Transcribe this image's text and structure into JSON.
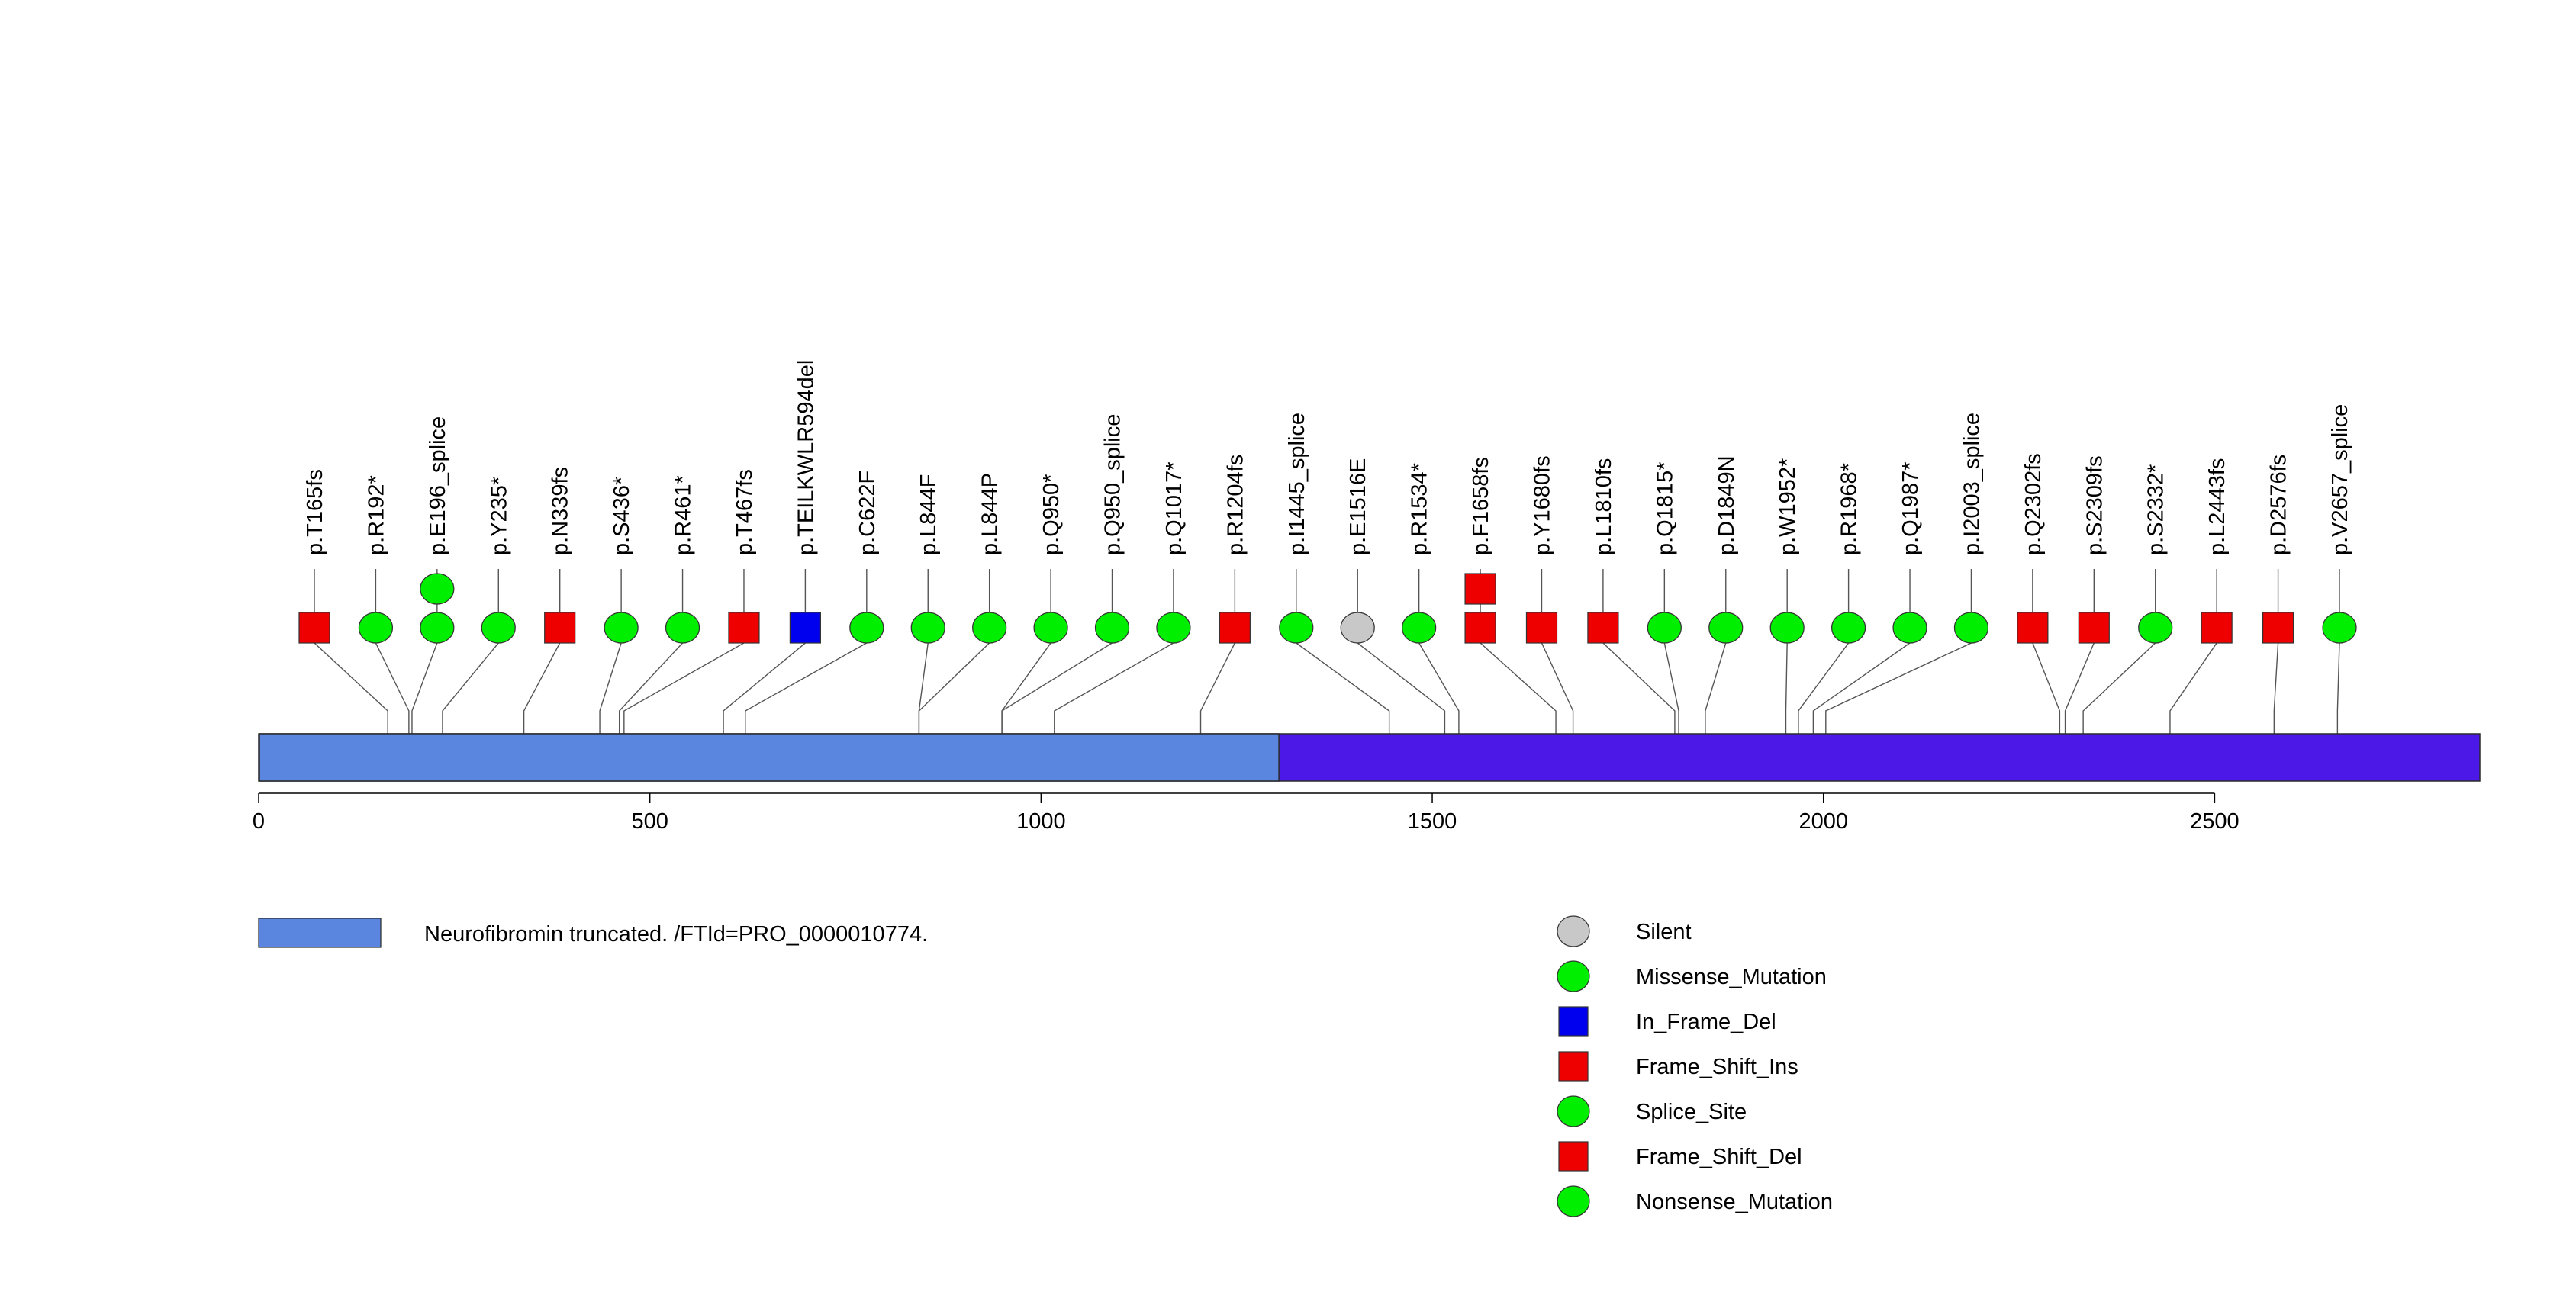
{
  "chart_data": {
    "type": "lollipop",
    "protein_length": 2839,
    "xlim": [
      0,
      2839
    ],
    "xticks": [
      0,
      500,
      1000,
      1500,
      2000,
      2500
    ],
    "domains": [
      {
        "start": 1,
        "end": 1304,
        "label": "Neurofibromin truncated. /FTId=PRO_0000010774.",
        "color": "#5b86e0"
      }
    ],
    "backbone_color": "#4c18e8",
    "mutations": [
      {
        "label": "p.T165fs",
        "position": 165,
        "type": "Frame_Shift_Ins"
      },
      {
        "label": "p.R192*",
        "position": 192,
        "type": "Nonsense_Mutation"
      },
      {
        "label": "p.E196_splice",
        "position": 196,
        "type": "Splice_Site",
        "stack": 2
      },
      {
        "label": "p.Y235*",
        "position": 235,
        "type": "Nonsense_Mutation"
      },
      {
        "label": "p.N339fs",
        "position": 339,
        "type": "Frame_Shift_Del"
      },
      {
        "label": "p.S436*",
        "position": 436,
        "type": "Nonsense_Mutation"
      },
      {
        "label": "p.R461*",
        "position": 461,
        "type": "Nonsense_Mutation"
      },
      {
        "label": "p.T467fs",
        "position": 467,
        "type": "Frame_Shift_Ins"
      },
      {
        "label": "p.TEILKWLR594del",
        "position": 594,
        "type": "In_Frame_Del"
      },
      {
        "label": "p.C622F",
        "position": 622,
        "type": "Missense_Mutation"
      },
      {
        "label": "p.L844F",
        "position": 844,
        "type": "Missense_Mutation"
      },
      {
        "label": "p.L844P",
        "position": 844,
        "type": "Missense_Mutation"
      },
      {
        "label": "p.Q950*",
        "position": 950,
        "type": "Nonsense_Mutation"
      },
      {
        "label": "p.Q950_splice",
        "position": 950,
        "type": "Splice_Site"
      },
      {
        "label": "p.Q1017*",
        "position": 1017,
        "type": "Nonsense_Mutation"
      },
      {
        "label": "p.R1204fs",
        "position": 1204,
        "type": "Frame_Shift_Del"
      },
      {
        "label": "p.I1445_splice",
        "position": 1445,
        "type": "Splice_Site"
      },
      {
        "label": "p.E1516E",
        "position": 1516,
        "type": "Silent"
      },
      {
        "label": "p.R1534*",
        "position": 1534,
        "type": "Nonsense_Mutation"
      },
      {
        "label": "p.F1658fs",
        "position": 1658,
        "type": "Frame_Shift_Del",
        "stack": 2
      },
      {
        "label": "p.Y1680fs",
        "position": 1680,
        "type": "Frame_Shift_Ins"
      },
      {
        "label": "p.L1810fs",
        "position": 1810,
        "type": "Frame_Shift_Del"
      },
      {
        "label": "p.Q1815*",
        "position": 1815,
        "type": "Nonsense_Mutation"
      },
      {
        "label": "p.D1849N",
        "position": 1849,
        "type": "Missense_Mutation"
      },
      {
        "label": "p.W1952*",
        "position": 1952,
        "type": "Nonsense_Mutation"
      },
      {
        "label": "p.R1968*",
        "position": 1968,
        "type": "Nonsense_Mutation"
      },
      {
        "label": "p.Q1987*",
        "position": 1987,
        "type": "Nonsense_Mutation"
      },
      {
        "label": "p.I2003_splice",
        "position": 2003,
        "type": "Splice_Site"
      },
      {
        "label": "p.Q2302fs",
        "position": 2302,
        "type": "Frame_Shift_Del"
      },
      {
        "label": "p.S2309fs",
        "position": 2309,
        "type": "Frame_Shift_Ins"
      },
      {
        "label": "p.S2332*",
        "position": 2332,
        "type": "Nonsense_Mutation"
      },
      {
        "label": "p.L2443fs",
        "position": 2443,
        "type": "Frame_Shift_Del"
      },
      {
        "label": "p.D2576fs",
        "position": 2576,
        "type": "Frame_Shift_Del"
      },
      {
        "label": "p.V2657_splice",
        "position": 2657,
        "type": "Splice_Site"
      }
    ],
    "legend": [
      {
        "label": "Silent",
        "shape": "circle",
        "color": "#c8c8c8"
      },
      {
        "label": "Missense_Mutation",
        "shape": "circle",
        "color": "#00ee00"
      },
      {
        "label": "In_Frame_Del",
        "shape": "square",
        "color": "#0000ee"
      },
      {
        "label": "Frame_Shift_Ins",
        "shape": "square",
        "color": "#ee0000"
      },
      {
        "label": "Splice_Site",
        "shape": "circle",
        "color": "#00ee00"
      },
      {
        "label": "Frame_Shift_Del",
        "shape": "square",
        "color": "#ee0000"
      },
      {
        "label": "Nonsense_Mutation",
        "shape": "circle",
        "color": "#00ee00"
      }
    ],
    "legend_placement": "bottom"
  }
}
